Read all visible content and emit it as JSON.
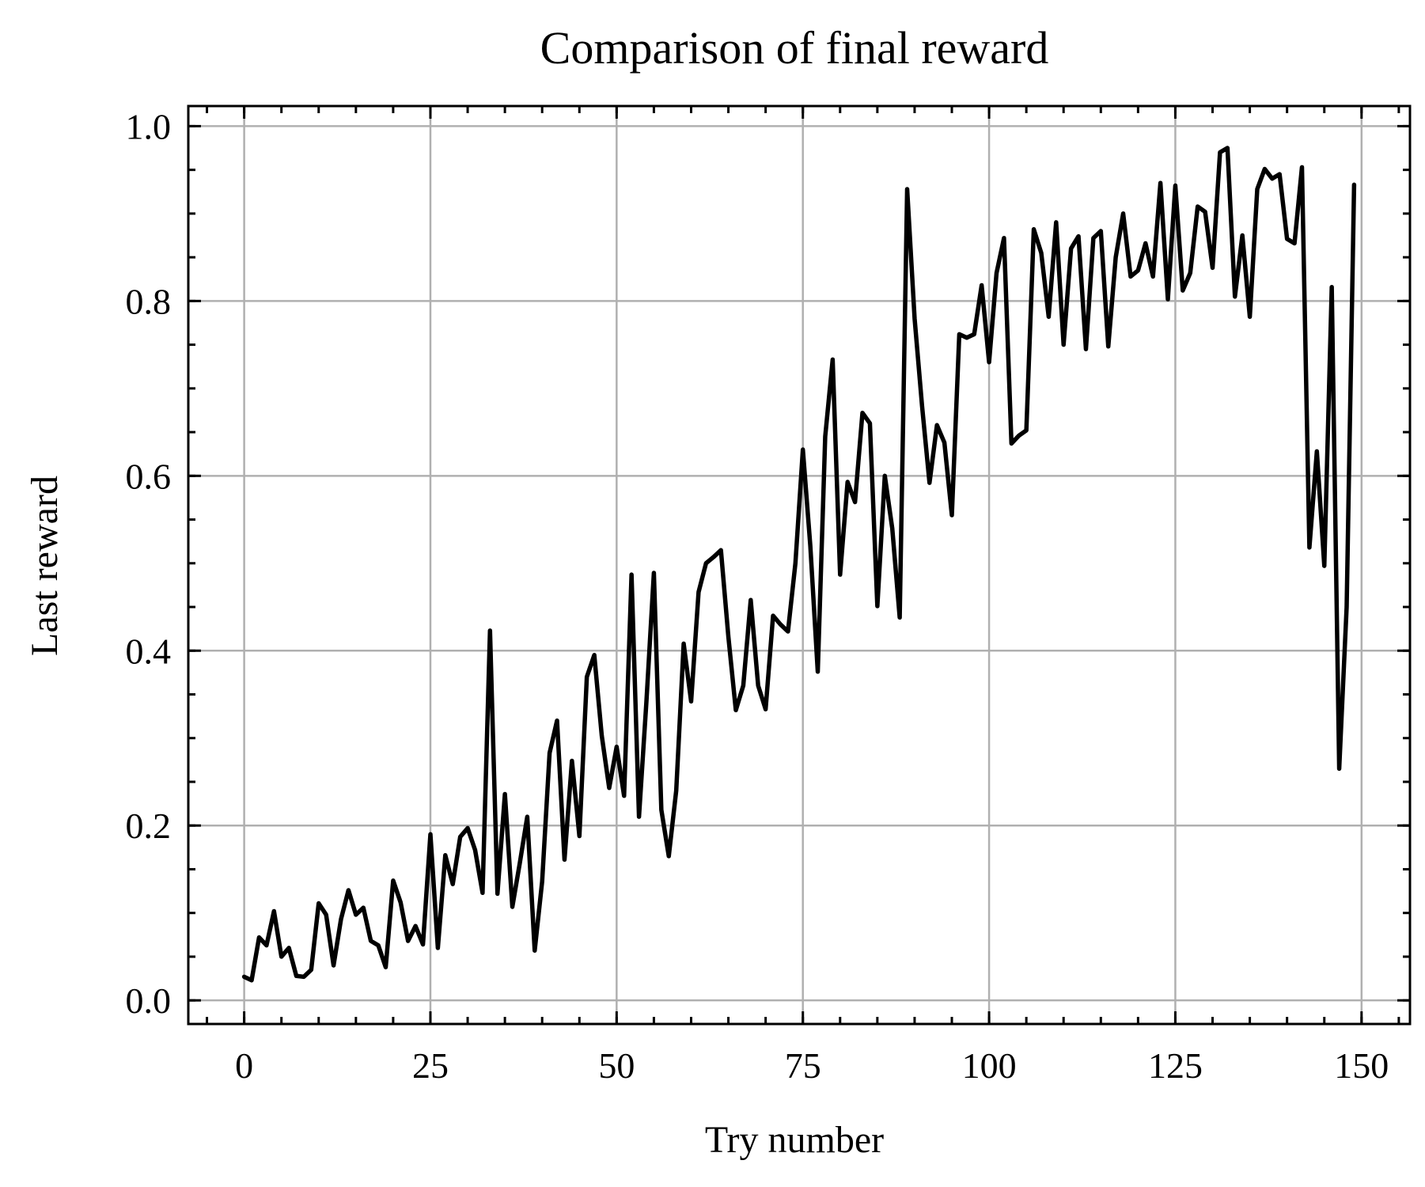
{
  "chart_data": {
    "type": "line",
    "title": "Comparison of final reward",
    "xlabel": "Try number",
    "ylabel": "Last reward",
    "xlim": [
      -7.5,
      156.5
    ],
    "ylim": [
      -0.027,
      1.023
    ],
    "grid": true,
    "xticks": [
      0,
      25,
      50,
      75,
      100,
      125,
      150
    ],
    "xtick_labels": [
      "0",
      "25",
      "50",
      "75",
      "100",
      "125",
      "150"
    ],
    "yticks": [
      0.0,
      0.2,
      0.4,
      0.6,
      0.8,
      1.0
    ],
    "ytick_labels": [
      "0.0",
      "0.2",
      "0.4",
      "0.6",
      "0.8",
      "1.0"
    ],
    "series": [
      {
        "color": "#000000",
        "x": [
          0,
          1,
          2,
          3,
          4,
          5,
          6,
          7,
          8,
          9,
          10,
          11,
          12,
          13,
          14,
          15,
          16,
          17,
          18,
          19,
          20,
          21,
          22,
          23,
          24,
          25,
          26,
          27,
          28,
          29,
          30,
          31,
          32,
          33,
          34,
          35,
          36,
          37,
          38,
          39,
          40,
          41,
          42,
          43,
          44,
          45,
          46,
          47,
          48,
          49,
          50,
          51,
          52,
          53,
          54,
          55,
          56,
          57,
          58,
          59,
          60,
          61,
          62,
          63,
          64,
          65,
          66,
          67,
          68,
          69,
          70,
          71,
          72,
          73,
          74,
          75,
          76,
          77,
          78,
          79,
          80,
          81,
          82,
          83,
          84,
          85,
          86,
          87,
          88,
          89,
          90,
          91,
          92,
          93,
          94,
          95,
          96,
          97,
          98,
          99,
          100,
          101,
          102,
          103,
          104,
          105,
          106,
          107,
          108,
          109,
          110,
          111,
          112,
          113,
          114,
          115,
          116,
          117,
          118,
          119,
          120,
          121,
          122,
          123,
          124,
          125,
          126,
          127,
          128,
          129,
          130,
          131,
          132,
          133,
          134,
          135,
          136,
          137,
          138,
          139,
          140,
          141,
          142,
          143,
          144,
          145,
          146,
          147,
          148,
          149
        ],
        "y": [
          0.027,
          0.023,
          0.072,
          0.063,
          0.102,
          0.05,
          0.06,
          0.028,
          0.027,
          0.035,
          0.111,
          0.098,
          0.04,
          0.093,
          0.126,
          0.098,
          0.106,
          0.068,
          0.063,
          0.038,
          0.137,
          0.112,
          0.068,
          0.085,
          0.064,
          0.19,
          0.06,
          0.166,
          0.133,
          0.187,
          0.197,
          0.172,
          0.123,
          0.423,
          0.122,
          0.236,
          0.107,
          0.157,
          0.21,
          0.057,
          0.136,
          0.283,
          0.32,
          0.161,
          0.274,
          0.188,
          0.37,
          0.395,
          0.303,
          0.243,
          0.29,
          0.234,
          0.487,
          0.21,
          0.342,
          0.489,
          0.218,
          0.165,
          0.24,
          0.408,
          0.342,
          0.467,
          0.5,
          0.507,
          0.515,
          0.416,
          0.332,
          0.36,
          0.458,
          0.36,
          0.333,
          0.44,
          0.43,
          0.422,
          0.5,
          0.63,
          0.52,
          0.376,
          0.645,
          0.733,
          0.487,
          0.593,
          0.57,
          0.672,
          0.66,
          0.451,
          0.6,
          0.54,
          0.438,
          0.928,
          0.78,
          0.68,
          0.592,
          0.658,
          0.638,
          0.555,
          0.762,
          0.758,
          0.762,
          0.818,
          0.73,
          0.832,
          0.872,
          0.637,
          0.646,
          0.652,
          0.882,
          0.855,
          0.782,
          0.89,
          0.75,
          0.86,
          0.874,
          0.745,
          0.872,
          0.88,
          0.748,
          0.85,
          0.9,
          0.828,
          0.835,
          0.866,
          0.828,
          0.935,
          0.802,
          0.932,
          0.812,
          0.832,
          0.908,
          0.902,
          0.838,
          0.97,
          0.975,
          0.805,
          0.875,
          0.782,
          0.928,
          0.951,
          0.94,
          0.945,
          0.871,
          0.866,
          0.953,
          0.518,
          0.628,
          0.497,
          0.816,
          0.265,
          0.45,
          0.933
        ]
      }
    ]
  }
}
